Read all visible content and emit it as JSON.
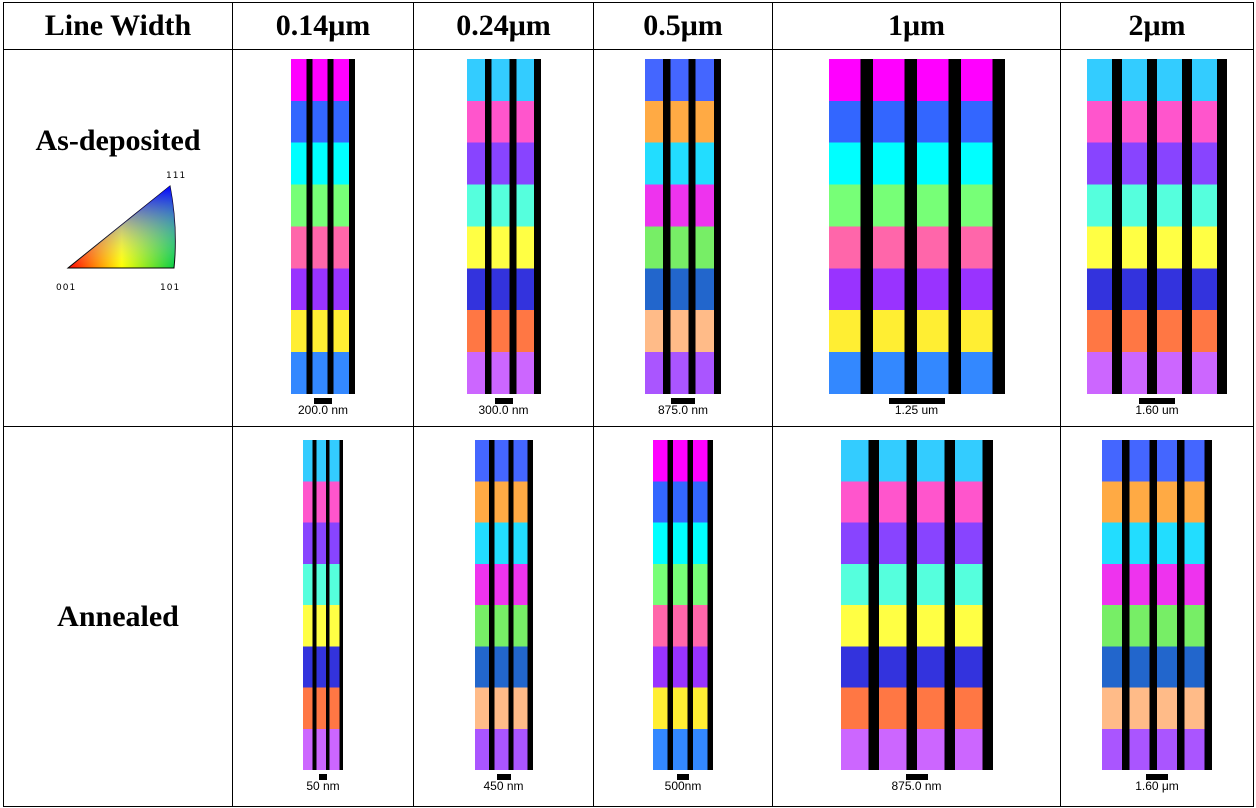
{
  "table": {
    "header": [
      "Line Width",
      "0.14μm",
      "0.24μm",
      "0.5μm",
      "1μm",
      "2μm"
    ],
    "rows": [
      {
        "label": "As-deposited",
        "scale_bars": [
          "200.0 nm",
          "300.0 nm",
          "875.0 nm",
          "1.25 um",
          "1.60 um"
        ]
      },
      {
        "label": "Annealed",
        "scale_bars": [
          "50 nm",
          "450 nm",
          "500nm",
          "875.0 nm",
          "1.60 μm"
        ]
      }
    ]
  },
  "legend": {
    "top": "111",
    "left": "001",
    "right": "101"
  }
}
